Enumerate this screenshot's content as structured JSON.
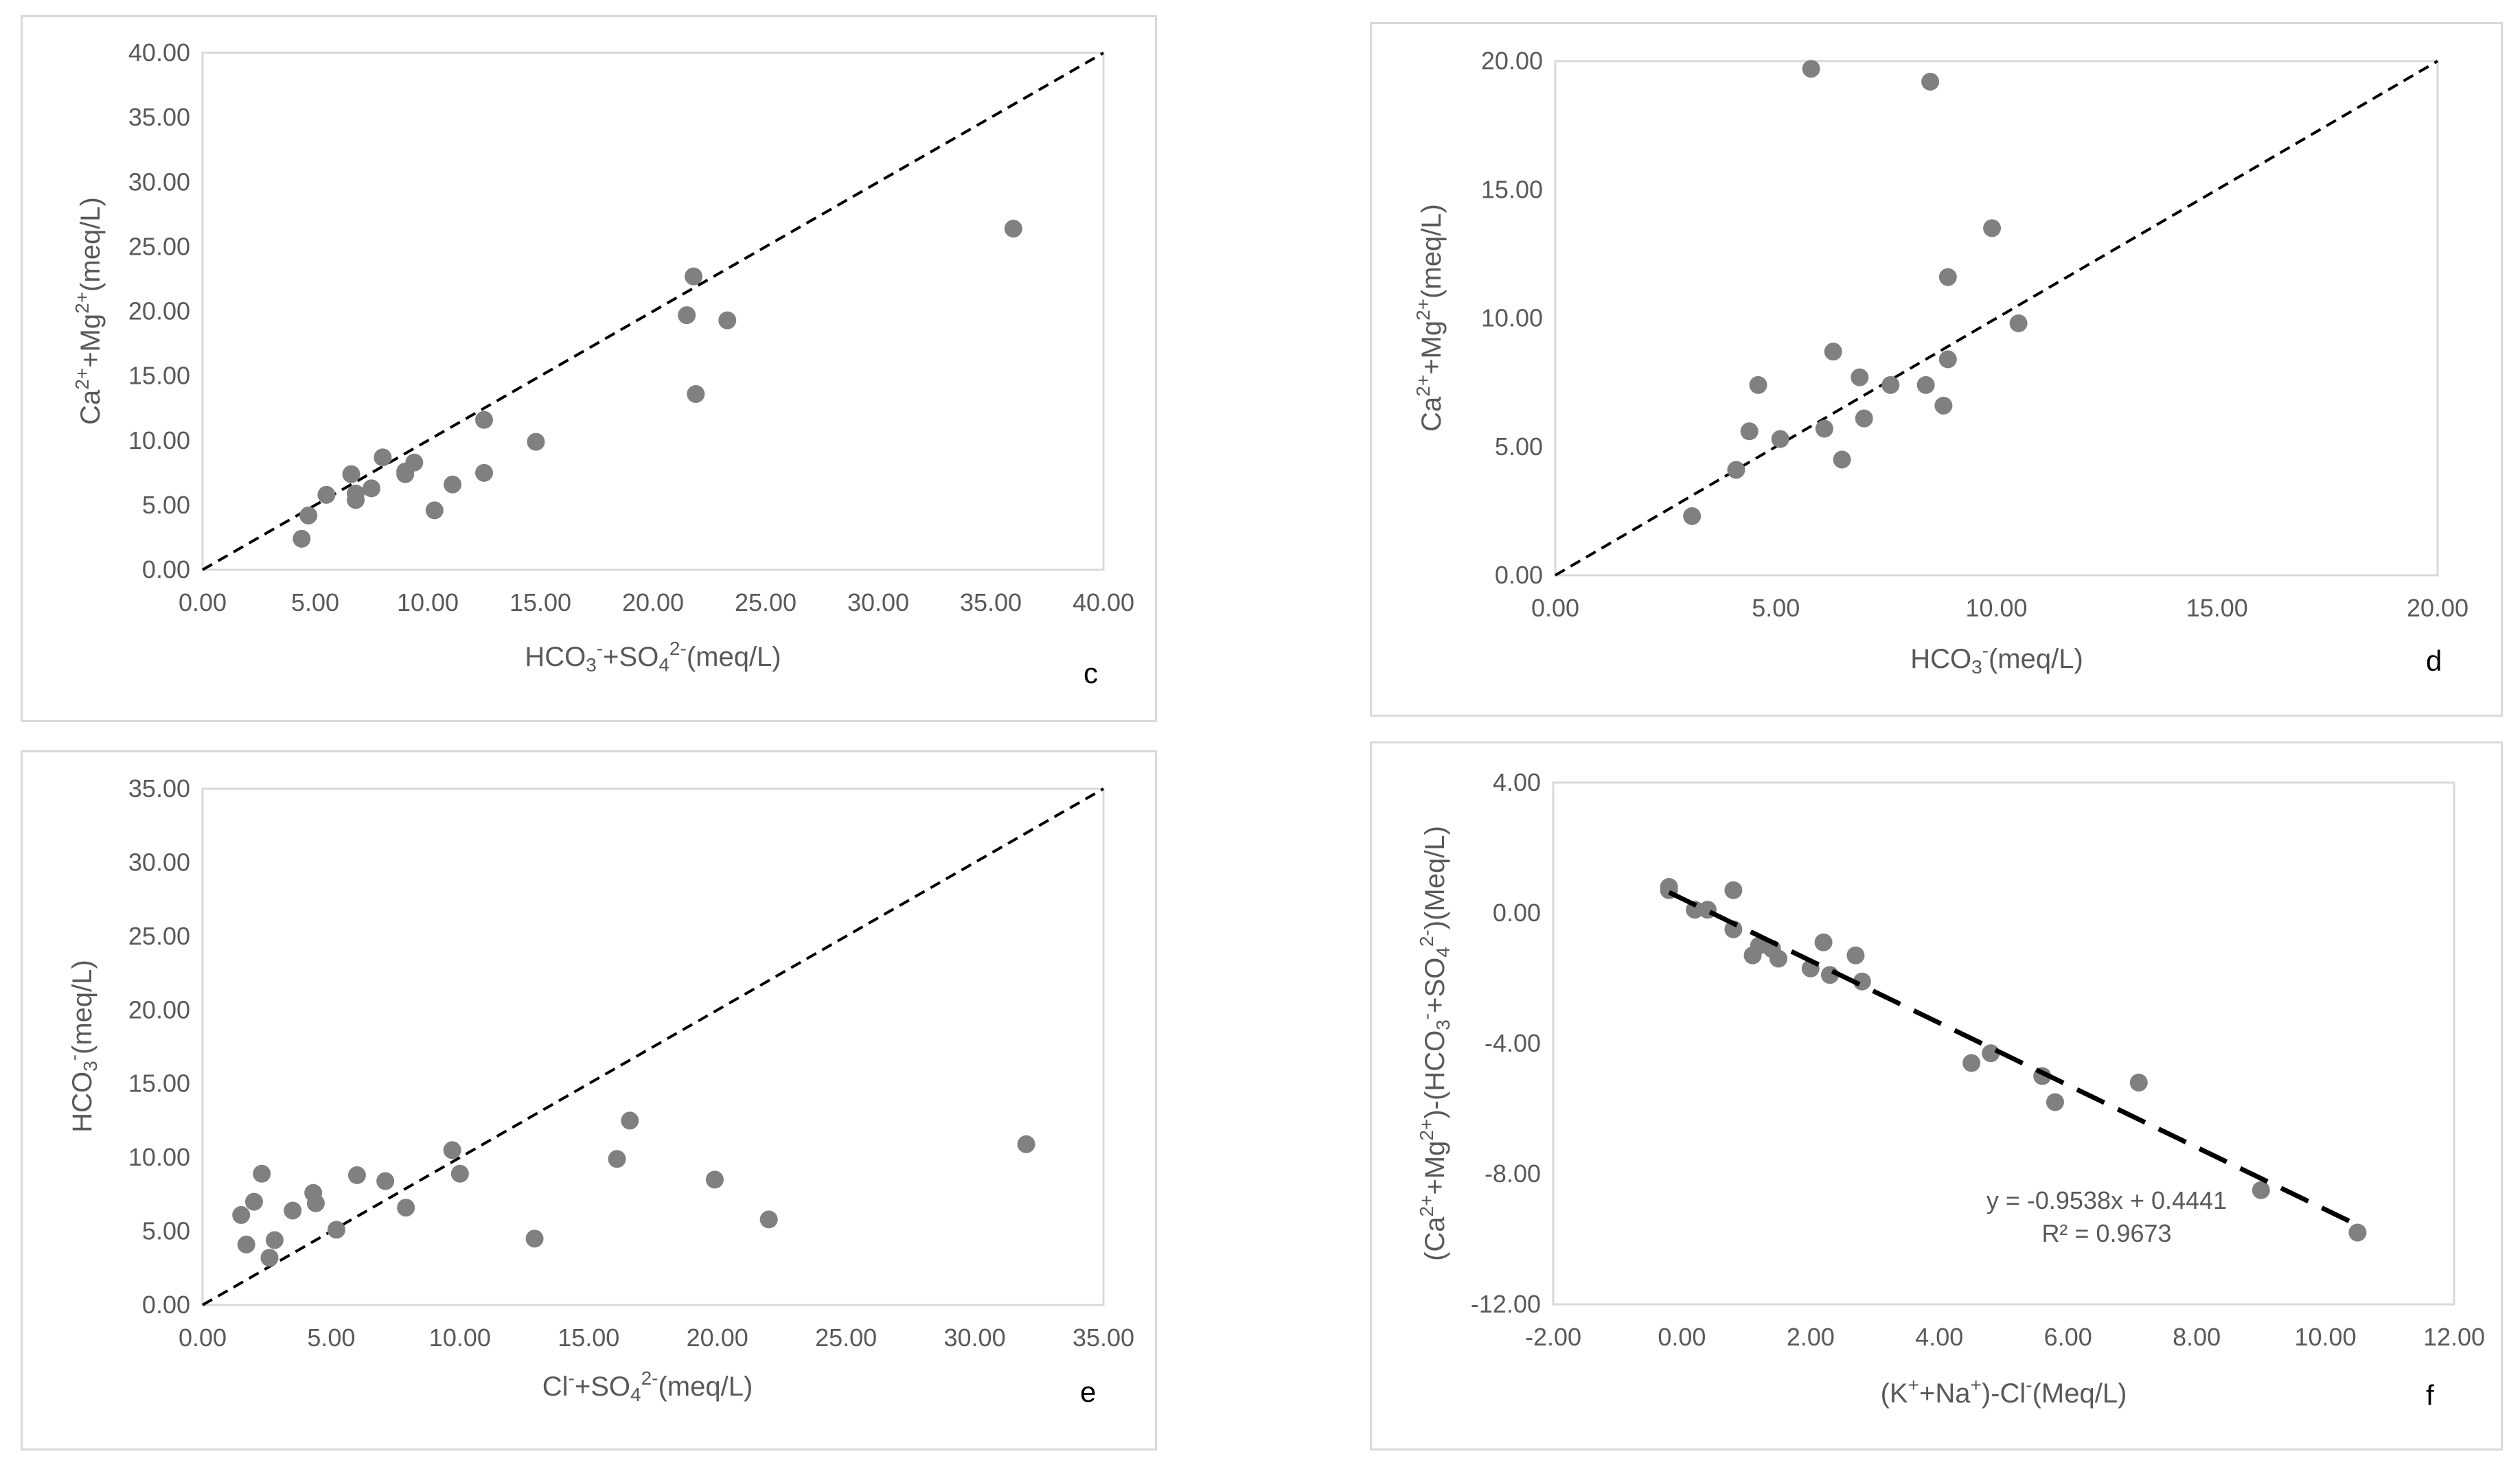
{
  "colors": {
    "marker": "#808080",
    "grid_frame": "#d9d9d9",
    "text": "#595959",
    "line": "#000000"
  },
  "chart_data": [
    {
      "id": "c",
      "type": "scatter",
      "panel_label": "c",
      "xlabel": "HCO3-+SO42-(meq/L)",
      "ylabel": "Ca2++Mg2+(meq/L)",
      "xlim": [
        0,
        40
      ],
      "ylim": [
        0,
        40
      ],
      "xticks": [
        "0.00",
        "5.00",
        "10.00",
        "15.00",
        "20.00",
        "25.00",
        "30.00",
        "35.00",
        "40.00"
      ],
      "yticks": [
        "0.00",
        "5.00",
        "10.00",
        "15.00",
        "20.00",
        "25.00",
        "30.00",
        "35.00",
        "40.00"
      ],
      "reference_line": {
        "style": "dashed",
        "from": [
          0,
          0
        ],
        "to": [
          40,
          40
        ]
      },
      "points": [
        [
          4.4,
          2.4
        ],
        [
          4.7,
          4.2
        ],
        [
          5.5,
          5.8
        ],
        [
          6.6,
          7.4
        ],
        [
          6.8,
          5.9
        ],
        [
          6.8,
          5.4
        ],
        [
          7.5,
          6.3
        ],
        [
          8.0,
          8.7
        ],
        [
          9.0,
          7.6
        ],
        [
          9.0,
          7.4
        ],
        [
          9.4,
          8.3
        ],
        [
          10.3,
          4.6
        ],
        [
          11.1,
          6.6
        ],
        [
          12.5,
          11.6
        ],
        [
          12.5,
          7.5
        ],
        [
          14.8,
          9.9
        ],
        [
          21.5,
          19.7
        ],
        [
          21.8,
          22.7
        ],
        [
          21.9,
          13.6
        ],
        [
          23.3,
          19.3
        ],
        [
          36.0,
          26.4
        ]
      ]
    },
    {
      "id": "d",
      "type": "scatter",
      "panel_label": "d",
      "xlabel": "HCO3-(meq/L)",
      "ylabel": "Ca2++Mg2+(meq/L)",
      "xlim": [
        0,
        20
      ],
      "ylim": [
        0,
        20
      ],
      "xticks": [
        "0.00",
        "5.00",
        "10.00",
        "15.00",
        "20.00"
      ],
      "yticks": [
        "0.00",
        "5.00",
        "10.00",
        "15.00",
        "20.00"
      ],
      "reference_line": {
        "style": "dashed",
        "from": [
          0,
          0
        ],
        "to": [
          20,
          20
        ]
      },
      "points": [
        [
          3.1,
          2.3
        ],
        [
          4.1,
          4.1
        ],
        [
          4.4,
          5.6
        ],
        [
          4.6,
          7.4
        ],
        [
          5.1,
          5.3
        ],
        [
          5.8,
          19.7
        ],
        [
          6.1,
          5.7
        ],
        [
          6.3,
          8.7
        ],
        [
          6.5,
          4.5
        ],
        [
          6.9,
          7.7
        ],
        [
          7.0,
          6.1
        ],
        [
          7.6,
          7.4
        ],
        [
          8.4,
          7.4
        ],
        [
          8.5,
          19.2
        ],
        [
          8.8,
          6.6
        ],
        [
          8.9,
          11.6
        ],
        [
          8.9,
          8.4
        ],
        [
          9.9,
          13.5
        ],
        [
          10.5,
          9.8
        ]
      ]
    },
    {
      "id": "e",
      "type": "scatter",
      "panel_label": "e",
      "xlabel": "Cl-+SO42-(meq/L)",
      "ylabel": "HCO3-(meq/L)",
      "xlim": [
        0,
        35
      ],
      "ylim": [
        0,
        35
      ],
      "xticks": [
        "0.00",
        "5.00",
        "10.00",
        "15.00",
        "20.00",
        "25.00",
        "30.00",
        "35.00"
      ],
      "yticks": [
        "0.00",
        "5.00",
        "10.00",
        "15.00",
        "20.00",
        "25.00",
        "30.00",
        "35.00"
      ],
      "reference_line": {
        "style": "dashed",
        "from": [
          0,
          0
        ],
        "to": [
          35,
          35
        ]
      },
      "points": [
        [
          1.5,
          6.1
        ],
        [
          1.7,
          4.1
        ],
        [
          2.0,
          7.0
        ],
        [
          2.3,
          8.9
        ],
        [
          2.6,
          3.2
        ],
        [
          2.8,
          4.4
        ],
        [
          3.5,
          6.4
        ],
        [
          4.3,
          7.6
        ],
        [
          4.4,
          6.9
        ],
        [
          5.2,
          5.1
        ],
        [
          6.0,
          8.8
        ],
        [
          7.1,
          8.4
        ],
        [
          7.9,
          6.6
        ],
        [
          9.7,
          10.5
        ],
        [
          10.0,
          8.9
        ],
        [
          12.9,
          4.5
        ],
        [
          16.1,
          9.9
        ],
        [
          16.6,
          12.5
        ],
        [
          19.9,
          8.5
        ],
        [
          22.0,
          5.8
        ],
        [
          32.0,
          10.9
        ]
      ]
    },
    {
      "id": "f",
      "type": "scatter",
      "panel_label": "f",
      "xlabel": "(K++Na+)-Cl-(Meq/L)",
      "ylabel": "(Ca2++Mg2+)-(HCO3-+SO42-)(Meq/L)",
      "xlim": [
        -2,
        12
      ],
      "ylim": [
        -12,
        4
      ],
      "xticks": [
        "-2.00",
        "0.00",
        "2.00",
        "4.00",
        "6.00",
        "8.00",
        "10.00",
        "12.00"
      ],
      "yticks": [
        "-12.00",
        "-8.00",
        "-4.00",
        "0.00",
        "4.00"
      ],
      "trendline": {
        "slope": -0.9538,
        "intercept": 0.4441,
        "x_from": -0.2,
        "x_to": 10.5
      },
      "equation": "y = -0.9538x + 0.4441",
      "r2": "R² = 0.9673",
      "points": [
        [
          -0.2,
          0.8
        ],
        [
          -0.2,
          0.7
        ],
        [
          0.2,
          0.1
        ],
        [
          0.4,
          0.1
        ],
        [
          0.8,
          0.7
        ],
        [
          0.8,
          -0.5
        ],
        [
          1.1,
          -1.3
        ],
        [
          1.2,
          -1.0
        ],
        [
          1.4,
          -1.1
        ],
        [
          1.5,
          -1.4
        ],
        [
          2.0,
          -1.7
        ],
        [
          2.2,
          -0.9
        ],
        [
          2.3,
          -1.9
        ],
        [
          2.7,
          -1.3
        ],
        [
          2.8,
          -2.1
        ],
        [
          4.5,
          -4.6
        ],
        [
          4.8,
          -4.3
        ],
        [
          5.6,
          -5.0
        ],
        [
          5.8,
          -5.8
        ],
        [
          7.1,
          -5.2
        ],
        [
          9.0,
          -8.5
        ],
        [
          10.5,
          -9.8
        ]
      ]
    }
  ]
}
